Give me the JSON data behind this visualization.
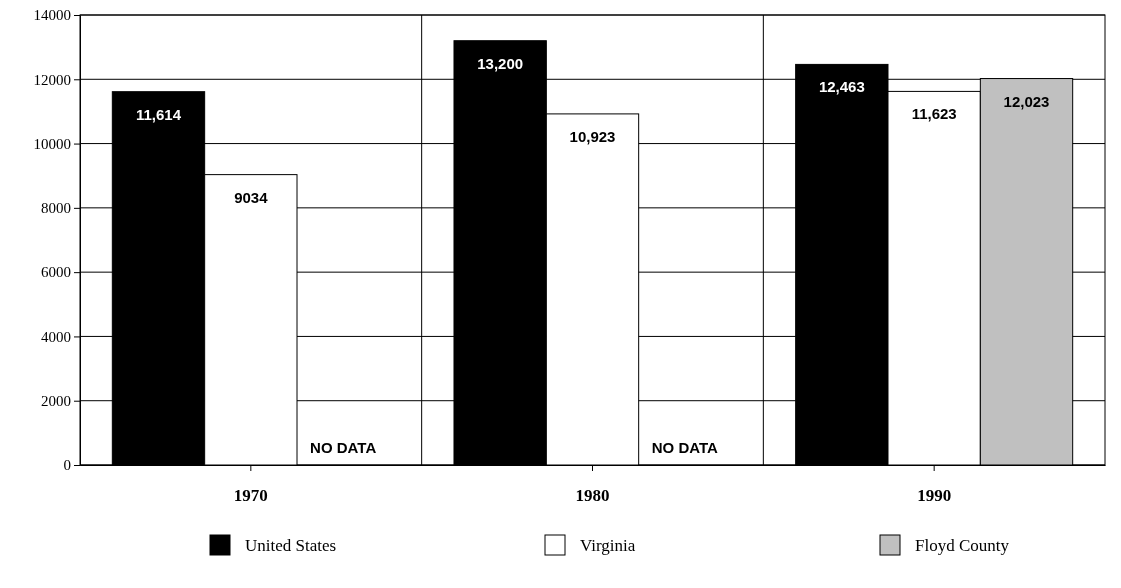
{
  "chart_data": {
    "type": "bar",
    "categories": [
      "1970",
      "1980",
      "1990"
    ],
    "series": [
      {
        "name": "United States",
        "color": "#000000",
        "values": [
          11614,
          13200,
          12463
        ],
        "value_labels": [
          "11,614",
          "13,200",
          "12,463"
        ]
      },
      {
        "name": "Virginia",
        "color": "#ffffff",
        "values": [
          9034,
          10923,
          11623
        ],
        "value_labels": [
          "9034",
          "10,923",
          "11,623"
        ]
      },
      {
        "name": "Floyd County",
        "color": "#c0c0c0",
        "values": [
          null,
          null,
          12023
        ],
        "value_labels": [
          "NO DATA",
          "NO DATA",
          "12,023"
        ]
      }
    ],
    "ylim": [
      0,
      14000
    ],
    "yticks": [
      0,
      2000,
      4000,
      6000,
      8000,
      10000,
      12000,
      14000
    ],
    "grid": true,
    "legend": "bottom"
  }
}
